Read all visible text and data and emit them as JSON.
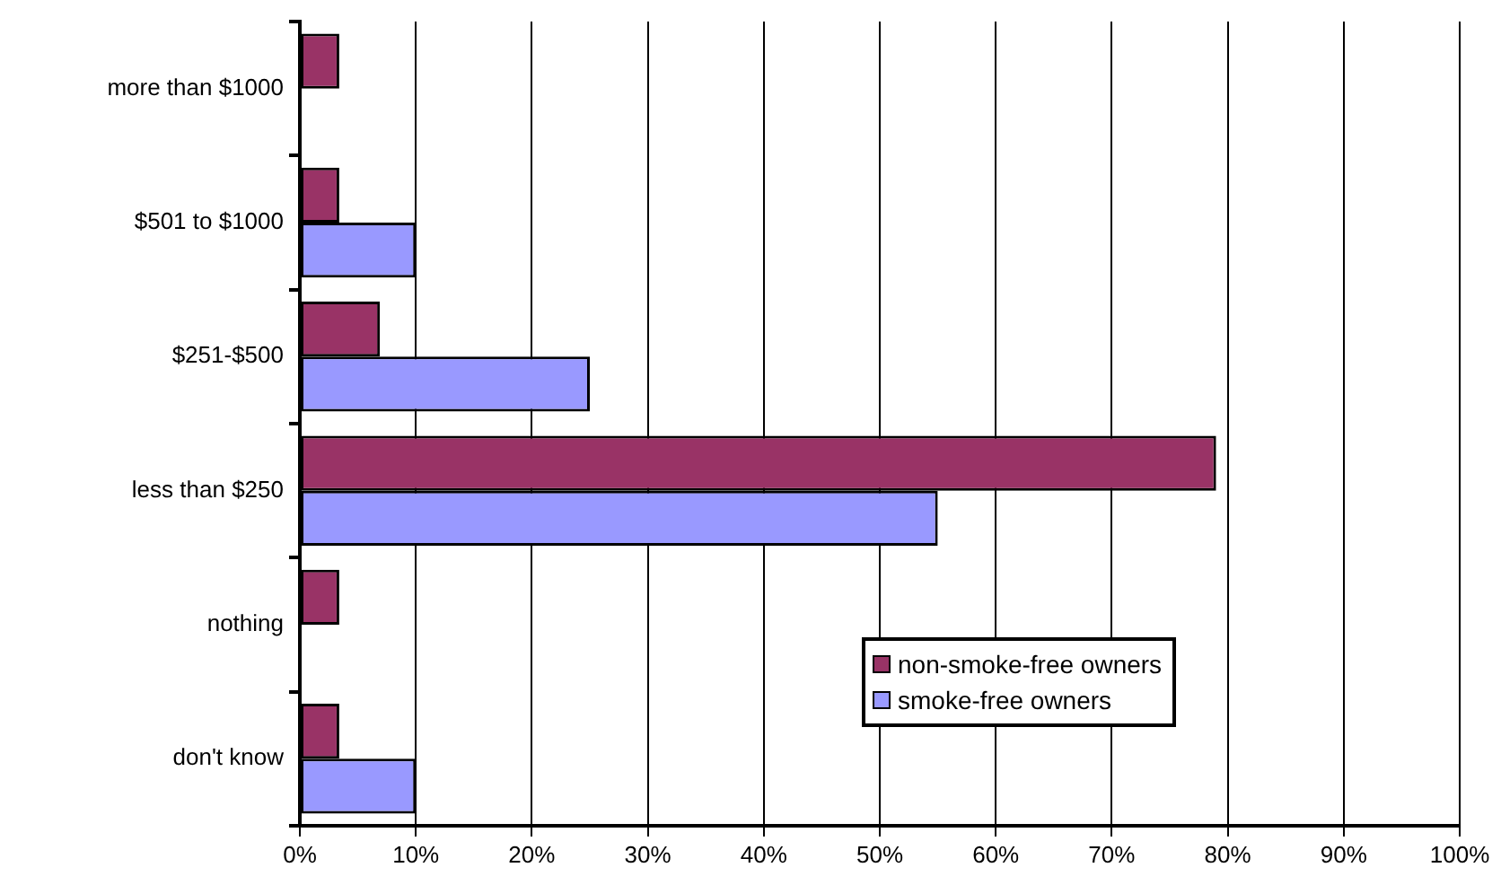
{
  "chart_data": {
    "type": "bar",
    "orientation": "horizontal",
    "categories": [
      "more than $1000",
      "$501 to $1000",
      "$251-$500",
      "less than $250",
      "nothing",
      "don't know"
    ],
    "series": [
      {
        "name": "non-smoke-free owners",
        "color": "#993366",
        "values": [
          3.4,
          3.4,
          6.9,
          79,
          3.4,
          3.4
        ]
      },
      {
        "name": "smoke-free owners",
        "color": "#9999ff",
        "values": [
          null,
          10,
          25,
          55,
          null,
          10
        ]
      }
    ],
    "xlim": [
      0,
      100
    ],
    "xticks": [
      {
        "value": 0,
        "label": "0%"
      },
      {
        "value": 10,
        "label": "10%"
      },
      {
        "value": 20,
        "label": "20%"
      },
      {
        "value": 30,
        "label": "30%"
      },
      {
        "value": 40,
        "label": "40%"
      },
      {
        "value": 50,
        "label": "50%"
      },
      {
        "value": 60,
        "label": "60%"
      },
      {
        "value": 70,
        "label": "70%"
      },
      {
        "value": 80,
        "label": "80%"
      },
      {
        "value": 90,
        "label": "90%"
      },
      {
        "value": 100,
        "label": "100%"
      }
    ],
    "grid": "x",
    "legend": "bottom right"
  }
}
